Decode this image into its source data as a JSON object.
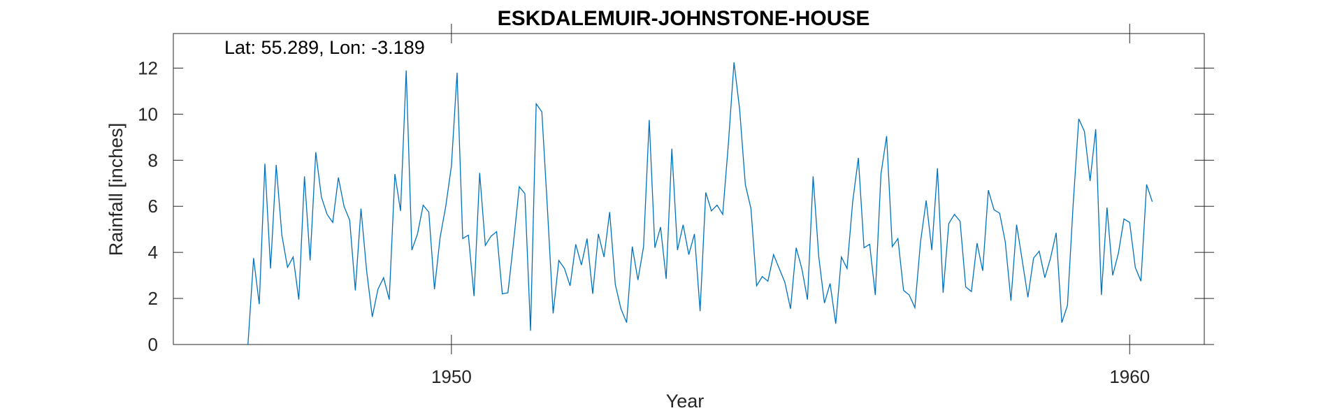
{
  "chart_data": {
    "type": "line",
    "title": "ESKDALEMUIR-JOHNSTONE-HOUSE",
    "annotation": "Lat: 55.289, Lon: -3.189",
    "xlabel": "Year",
    "ylabel": "Rainfall [inches]",
    "xlim": [
      1945.9,
      1961.1
    ],
    "ylim": [
      0,
      13.5
    ],
    "xticks": [
      1950,
      1960
    ],
    "yticks": [
      0,
      2,
      4,
      6,
      8,
      10,
      12
    ],
    "grid": false,
    "line_color": "#0072BD",
    "series": [
      {
        "x_start": 1947.0,
        "x_step": 0.08333,
        "values": [
          0.0,
          3.75,
          1.75,
          7.85,
          3.3,
          7.8,
          4.75,
          3.35,
          3.8,
          1.95,
          7.3,
          3.65,
          8.35,
          6.4,
          5.65,
          5.3,
          7.25,
          6.0,
          5.4,
          2.35,
          5.9,
          3.2,
          1.2,
          2.4,
          2.9,
          1.95,
          7.4,
          5.8,
          11.9,
          4.1,
          4.8,
          6.05,
          5.75,
          2.4,
          4.65,
          6.0,
          7.75,
          11.8,
          4.6,
          4.75,
          2.1,
          7.45,
          4.3,
          4.7,
          4.9,
          2.2,
          2.25,
          4.45,
          6.85,
          6.55,
          0.6,
          10.45,
          10.1,
          5.85,
          1.35,
          3.65,
          3.3,
          2.55,
          4.35,
          3.45,
          4.6,
          2.2,
          4.8,
          3.8,
          5.75,
          2.6,
          1.55,
          0.95,
          4.25,
          2.8,
          4.25,
          9.75,
          4.2,
          5.1,
          2.85,
          8.5,
          4.1,
          5.2,
          3.9,
          4.8,
          1.45,
          6.6,
          5.8,
          6.05,
          5.65,
          8.7,
          12.25,
          10.2,
          6.95,
          5.9,
          2.55,
          2.95,
          2.75,
          3.9,
          3.3,
          2.7,
          1.55,
          4.2,
          3.3,
          1.95,
          7.3,
          3.8,
          1.8,
          2.65,
          0.9,
          3.8,
          3.3,
          6.2,
          8.1,
          4.2,
          4.35,
          2.15,
          7.4,
          9.05,
          4.25,
          4.6,
          2.35,
          2.15,
          1.6,
          4.45,
          6.25,
          4.1,
          7.65,
          2.25,
          5.25,
          5.65,
          5.35,
          2.5,
          2.3,
          4.4,
          3.2,
          6.7,
          5.85,
          5.7,
          4.45,
          1.9,
          5.2,
          3.65,
          2.05,
          3.75,
          4.05,
          2.9,
          3.75,
          4.85,
          0.95,
          1.7,
          6.05,
          9.8,
          9.25,
          7.1,
          9.35,
          2.15,
          5.95,
          3.0,
          3.95,
          5.45,
          5.3,
          3.35,
          2.75,
          6.95,
          6.2
        ]
      }
    ]
  }
}
